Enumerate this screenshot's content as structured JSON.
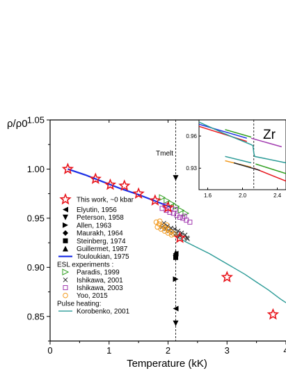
{
  "chart_data": {
    "type": "scatter",
    "xlabel": "Temperature (kK)",
    "ylabel": "ρ/ρ0",
    "xlim": [
      0,
      4
    ],
    "ylim": [
      0.825,
      1.05
    ],
    "x_ticks": [
      "0",
      "1",
      "2",
      "3",
      "4"
    ],
    "y_ticks": [
      "0.85",
      "0.90",
      "0.95",
      "1.00",
      "1.05"
    ],
    "annotation_tmelt": "Tmelt",
    "tmelt_x": 2.13,
    "inset_label": "Zr",
    "legend_header_esl": "ESL experiments :",
    "legend_header_pulse": "Pulse heating:",
    "series": [
      {
        "name": "This work, ~0 kbar",
        "marker": "star",
        "color": "#e8141b",
        "x": [
          0.3,
          0.77,
          1.02,
          1.26,
          1.5,
          1.78,
          2.0,
          2.2,
          3.0,
          3.78
        ],
        "y": [
          1.0,
          0.99,
          0.984,
          0.983,
          0.975,
          0.968,
          0.961,
          0.93,
          0.89,
          0.852
        ]
      },
      {
        "name": "Elyutin, 1956",
        "marker": "tri-left",
        "color": "#000000",
        "x": [
          2.13,
          2.13
        ],
        "y": [
          0.858,
          0.914
        ]
      },
      {
        "name": "Peterson, 1958",
        "marker": "tri-down",
        "color": "#000000",
        "x": [
          2.13,
          2.13
        ],
        "y": [
          0.843,
          0.991
        ]
      },
      {
        "name": "Allen, 1963",
        "marker": "tri-right",
        "color": "#000000",
        "x": [
          2.13
        ],
        "y": [
          0.888
        ]
      },
      {
        "name": "Maurakh, 1964",
        "marker": "diamond",
        "color": "#000000",
        "x": [
          2.13
        ],
        "y": [
          0.912
        ]
      },
      {
        "name": "Steinberg, 1974",
        "marker": "square",
        "color": "#000000",
        "x": [
          2.13
        ],
        "y": [
          0.91
        ]
      },
      {
        "name": "Guillermet, 1987",
        "marker": "tri-up",
        "color": "#000000",
        "x": [
          2.13
        ],
        "y": [
          0.915
        ]
      },
      {
        "name": "Touloukian, 1975",
        "marker": "line",
        "color": "#1a2ee6",
        "x": [
          0.3,
          0.6,
          0.9,
          1.2,
          1.5,
          1.8,
          2.05
        ],
        "y": [
          1.0,
          0.994,
          0.987,
          0.98,
          0.974,
          0.967,
          0.961
        ]
      },
      {
        "name": "Paradis, 1999",
        "marker": "tri-open",
        "color": "#2e9e1e",
        "x": [
          1.9,
          1.98,
          2.06,
          2.14,
          2.22,
          2.3
        ],
        "y": [
          0.971,
          0.968,
          0.965,
          0.962,
          0.958,
          0.955
        ]
      },
      {
        "name": "Ishikawa, 2001",
        "marker": "x",
        "color": "#222222",
        "x": [
          1.9,
          1.96,
          2.02,
          2.08,
          2.14,
          2.2,
          2.26,
          2.32,
          1.93,
          1.99,
          2.05,
          2.11,
          2.17,
          2.23,
          2.29,
          2.33
        ],
        "y": [
          0.941,
          0.939,
          0.937,
          0.935,
          0.934,
          0.932,
          0.931,
          0.93,
          0.945,
          0.942,
          0.94,
          0.939,
          0.937,
          0.935,
          0.933,
          0.929
        ]
      },
      {
        "name": "Ishikawa, 2003",
        "marker": "square-open",
        "color": "#a23bb0",
        "x": [
          1.9,
          1.97,
          2.03,
          2.09,
          2.15,
          2.2,
          2.25,
          2.31,
          2.37,
          1.95,
          2.12,
          2.28
        ],
        "y": [
          0.96,
          0.958,
          0.956,
          0.955,
          0.953,
          0.951,
          0.95,
          0.948,
          0.946,
          0.963,
          0.959,
          0.952
        ]
      },
      {
        "name": "Yoo, 2015",
        "marker": "circle-open",
        "color": "#f29a1f",
        "x": [
          1.8,
          1.85,
          1.9,
          1.95,
          2.0,
          2.05,
          2.1,
          1.82,
          1.88,
          1.94,
          2.0,
          2.06,
          1.86,
          1.98
        ],
        "y": [
          0.946,
          0.944,
          0.942,
          0.94,
          0.938,
          0.936,
          0.934,
          0.941,
          0.939,
          0.937,
          0.935,
          0.933,
          0.947,
          0.943
        ]
      },
      {
        "name": "Korobenko, 2001",
        "marker": "line",
        "color": "#2a9a96",
        "x": [
          2.13,
          2.16,
          2.3,
          2.5,
          2.7,
          2.9,
          3.1,
          3.3,
          3.5,
          3.7,
          3.9,
          4.0
        ],
        "y": [
          0.933,
          0.931,
          0.926,
          0.92,
          0.914,
          0.907,
          0.9,
          0.893,
          0.885,
          0.877,
          0.868,
          0.864
        ]
      }
    ],
    "inset": {
      "xlim": [
        1.5,
        2.5
      ],
      "ylim": [
        0.91,
        0.975
      ],
      "x_ticks": [
        "1.6",
        "2.0",
        "2.4"
      ],
      "y_ticks": [
        "0.93",
        "0.96"
      ],
      "tmelt_x": 2.13,
      "lines": [
        {
          "color": "#1a2ee6",
          "x": [
            1.5,
            2.05
          ],
          "y": [
            0.971,
            0.958
          ]
        },
        {
          "color": "#e8141b",
          "x": [
            1.5,
            2.05
          ],
          "y": [
            0.969,
            0.955
          ]
        },
        {
          "color": "#e8141b",
          "x": [
            2.13,
            2.5
          ],
          "y": [
            0.93,
            0.918
          ]
        },
        {
          "color": "#2a9a96",
          "x": [
            1.5,
            1.8,
            2.1,
            2.12,
            2.13,
            2.14,
            2.5
          ],
          "y": [
            0.973,
            0.962,
            0.952,
            0.951,
            0.944,
            0.941,
            0.935
          ]
        },
        {
          "color": "#2e9e1e",
          "x": [
            1.8,
            2.1
          ],
          "y": [
            0.966,
            0.959
          ]
        },
        {
          "color": "#a23bb0",
          "x": [
            2.1,
            2.45
          ],
          "y": [
            0.958,
            0.95
          ]
        },
        {
          "color": "#2a9a96",
          "x": [
            1.8,
            2.1
          ],
          "y": [
            0.941,
            0.935
          ]
        },
        {
          "color": "#f29a1f",
          "x": [
            1.8,
            2.1
          ],
          "y": [
            0.937,
            0.931
          ]
        },
        {
          "color": "#222222",
          "x": [
            1.9,
            2.2
          ],
          "y": [
            0.935,
            0.928
          ]
        },
        {
          "color": "#2e9e1e",
          "x": [
            2.15,
            2.5
          ],
          "y": [
            0.934,
            0.925
          ]
        }
      ]
    }
  }
}
